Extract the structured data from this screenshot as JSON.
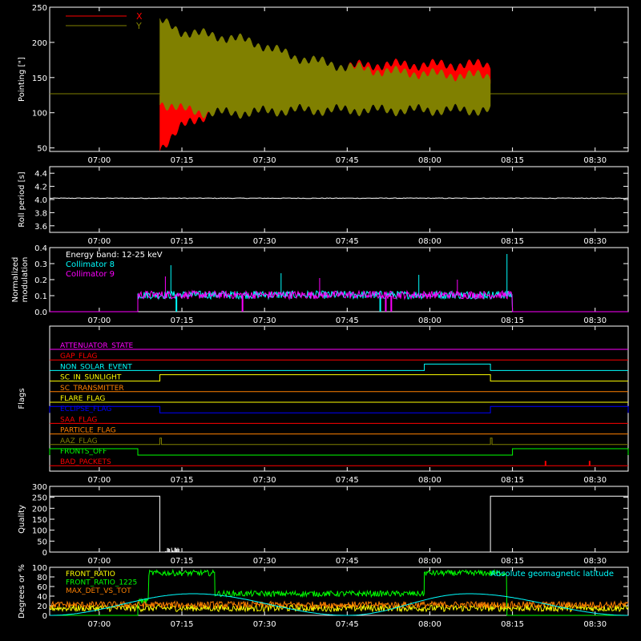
{
  "time_ticks": [
    "07:00",
    "07:15",
    "07:30",
    "07:45",
    "08:00",
    "08:15",
    "08:30"
  ],
  "chart_data": [
    {
      "type": "area",
      "panel": "pointing",
      "ylabel": "Pointing [\"]",
      "ylim": [
        45,
        250
      ],
      "yticks": [
        "250",
        "200",
        "150",
        "100",
        "50"
      ],
      "grid": false,
      "legend_placement": "top-left",
      "x_range": [
        "06:51",
        "08:36"
      ],
      "series": [
        {
          "name": "X",
          "color": "#ff0000",
          "x": [
            "07:11",
            "07:15",
            "07:20",
            "07:25",
            "07:30",
            "07:35",
            "07:40",
            "07:45",
            "07:50",
            "07:55",
            "08:00",
            "08:05",
            "08:11"
          ],
          "y_low": [
            50,
            80,
            100,
            110,
            115,
            120,
            125,
            130,
            132,
            133,
            134,
            135,
            136
          ],
          "y_high": [
            120,
            125,
            130,
            135,
            145,
            155,
            160,
            165,
            168,
            168,
            168,
            168,
            168
          ]
        },
        {
          "name": "Y",
          "color": "#808000",
          "x": [
            "07:11",
            "07:15",
            "07:20",
            "07:25",
            "07:30",
            "07:35",
            "07:40",
            "07:45",
            "07:50",
            "07:55",
            "08:00",
            "08:05",
            "08:11"
          ],
          "y_low": [
            115,
            105,
            100,
            100,
            102,
            104,
            104,
            104,
            104,
            104,
            104,
            104,
            104
          ],
          "y_high": [
            230,
            215,
            210,
            205,
            195,
            180,
            172,
            165,
            160,
            157,
            155,
            153,
            152
          ]
        }
      ],
      "baseline": {
        "y": 127
      }
    },
    {
      "type": "line",
      "panel": "roll",
      "ylabel": "Roll period [s]",
      "ylim": [
        3.5,
        4.5
      ],
      "yticks": [
        "4.4",
        "4.2",
        "4.0",
        "3.8",
        "3.6"
      ],
      "series": [
        {
          "color": "#ffffff",
          "x": [
            "06:51",
            "08:36"
          ],
          "y": [
            4.02,
            4.02
          ]
        }
      ]
    },
    {
      "type": "line",
      "panel": "modulation",
      "ylabel": "Normalized modulation",
      "ylim": [
        0,
        0.4
      ],
      "yticks": [
        "0.4",
        "0.3",
        "0.2",
        "0.1",
        "0.0"
      ],
      "annotation": "Energy band: 12-25 keV",
      "series": [
        {
          "name": "Collimator 8",
          "color": "#00ffff",
          "x_start": "07:07",
          "x_end": "08:15",
          "mean": 0.1,
          "spikes": [
            [
              "07:13",
              0.29
            ],
            [
              "08:14",
              0.36
            ],
            [
              "07:33",
              0.24
            ],
            [
              "07:58",
              0.23
            ]
          ],
          "dropouts": [
            "07:14",
            "07:51"
          ]
        },
        {
          "name": "Collimator 9",
          "color": "#ff00ff",
          "x_start": "07:07",
          "x_end": "08:15",
          "mean": 0.1,
          "spikes": [
            [
              "07:12",
              0.22
            ],
            [
              "07:40",
              0.21
            ],
            [
              "08:05",
              0.2
            ]
          ],
          "dropouts": [
            "07:26",
            "07:52",
            "07:53"
          ]
        }
      ]
    },
    {
      "type": "line",
      "panel": "flags",
      "ylabel": "Flags",
      "flags": [
        {
          "name": "ATTENUATOR_STATE",
          "color": "#ff00ff",
          "steps": []
        },
        {
          "name": "GAP_FLAG",
          "color": "#ff0000",
          "steps": []
        },
        {
          "name": "NON_SOLAR_EVENT",
          "color": "#00ffff",
          "steps": [
            [
              "07:59",
              "08:11"
            ]
          ]
        },
        {
          "name": "SC_IN_SUNLIGHT",
          "color": "#ffff00",
          "steps": [
            [
              "07:11",
              "08:11"
            ]
          ]
        },
        {
          "name": "SC_TRANSMITTER",
          "color": "#ff8000",
          "steps": []
        },
        {
          "name": "FLARE_FLAG",
          "color": "#ffff00",
          "steps": []
        },
        {
          "name": "ECLIPSE_FLAG",
          "color": "#0000ff",
          "steps": [
            [
              "06:51",
              "07:11"
            ],
            [
              "08:11",
              "08:36"
            ]
          ]
        },
        {
          "name": "SAA_FLAG",
          "color": "#ff0000",
          "steps": []
        },
        {
          "name": "PARTICLE_FLAG",
          "color": "#ff8000",
          "steps": []
        },
        {
          "name": "AAZ_FLAG",
          "color": "#808000",
          "steps": [
            [
              "07:11",
              "07:11"
            ],
            [
              "08:11",
              "08:11"
            ]
          ]
        },
        {
          "name": "FRONTS_OFF",
          "color": "#00ff00",
          "steps": [
            [
              "06:51",
              "07:07"
            ],
            [
              "08:15",
              "08:36"
            ]
          ]
        },
        {
          "name": "BAD_PACKETS",
          "color": "#ff0000",
          "steps": [],
          "ticks": [
            "08:21",
            "08:29"
          ]
        }
      ]
    },
    {
      "type": "line",
      "panel": "quality",
      "ylabel": "Quality",
      "ylim": [
        0,
        300
      ],
      "yticks": [
        "300",
        "250",
        "200",
        "150",
        "100",
        "50",
        "0"
      ],
      "series": [
        {
          "color": "#ffffff",
          "x": [
            "06:51",
            "07:11",
            "07:11",
            "08:11",
            "08:11",
            "08:36"
          ],
          "y": [
            255,
            255,
            0,
            0,
            255,
            255
          ]
        }
      ]
    },
    {
      "type": "line",
      "panel": "geomag",
      "ylabel": "Degrees or %",
      "ylim": [
        0,
        100
      ],
      "yticks": [
        "100",
        "80",
        "60",
        "40",
        "20",
        "0"
      ],
      "annotation": "Absolute geomagnetic latitude",
      "series": [
        {
          "name": "FRONT_RATIO",
          "color": "#ffff00",
          "level": 15
        },
        {
          "name": "FRONT_RATIO_1225",
          "color": "#00ff00",
          "segments": [
            [
              "06:51",
              "07:07",
              0
            ],
            [
              "07:07",
              "07:09",
              30
            ],
            [
              "07:09",
              "07:21",
              88
            ],
            [
              "07:21",
              "07:59",
              45
            ],
            [
              "07:59",
              "08:11",
              88
            ],
            [
              "08:11",
              "08:14",
              88
            ],
            [
              "08:14",
              "08:36",
              0
            ]
          ]
        },
        {
          "name": "MAX_DET_VS_TOT",
          "color": "#ff8000",
          "level": 22
        },
        {
          "color": "#00ffff",
          "x": [
            "06:51",
            "07:17",
            "07:45",
            "08:07",
            "08:36"
          ],
          "y": [
            0,
            45,
            0,
            45,
            0
          ]
        }
      ]
    }
  ]
}
